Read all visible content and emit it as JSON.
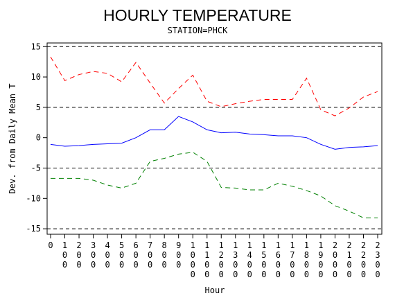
{
  "chart_data": {
    "type": "line",
    "title": "HOURLY TEMPERATURE",
    "subtitle": "STATION=PHCK",
    "x_label": "Hour",
    "y_label": "Dev. from Daily Mean T",
    "categories": [
      "0",
      "100",
      "200",
      "300",
      "400",
      "500",
      "600",
      "700",
      "800",
      "900",
      "1000",
      "1100",
      "1200",
      "1300",
      "1400",
      "1500",
      "1600",
      "1700",
      "1800",
      "1900",
      "2000",
      "2100",
      "2200",
      "2300"
    ],
    "series": [
      {
        "color": "#ff0000",
        "dash": "dashed",
        "values": [
          13.3,
          9.4,
          10.4,
          10.9,
          10.6,
          9.2,
          12.4,
          9.0,
          5.7,
          8.1,
          10.3,
          6.0,
          5.1,
          5.6,
          6.0,
          6.3,
          6.3,
          6.3,
          9.8,
          4.6,
          3.6,
          4.9,
          6.7,
          7.6
        ]
      },
      {
        "color": "#0000ff",
        "dash": "solid",
        "values": [
          -1.1,
          -1.4,
          -1.3,
          -1.1,
          -1.0,
          -0.9,
          0.0,
          1.3,
          1.3,
          3.5,
          2.6,
          1.3,
          0.8,
          0.9,
          0.6,
          0.5,
          0.3,
          0.3,
          0.0,
          -1.1,
          -1.9,
          -1.6,
          -1.5,
          -1.3
        ]
      },
      {
        "color": "#008000",
        "dash": "dashed",
        "values": [
          -6.7,
          -6.7,
          -6.7,
          -7.0,
          -7.8,
          -8.3,
          -7.5,
          -3.9,
          -3.4,
          -2.7,
          -2.4,
          -3.9,
          -8.2,
          -8.3,
          -8.6,
          -8.6,
          -7.5,
          -8.0,
          -8.7,
          -9.6,
          -11.2,
          -12.1,
          -13.2,
          -13.2
        ]
      }
    ],
    "reference_lines": [
      -15,
      -5,
      5,
      15
    ],
    "ylim": [
      -15.9,
      15.6
    ],
    "yticks": [
      -15,
      -10,
      -5,
      0,
      5,
      10,
      15
    ]
  }
}
